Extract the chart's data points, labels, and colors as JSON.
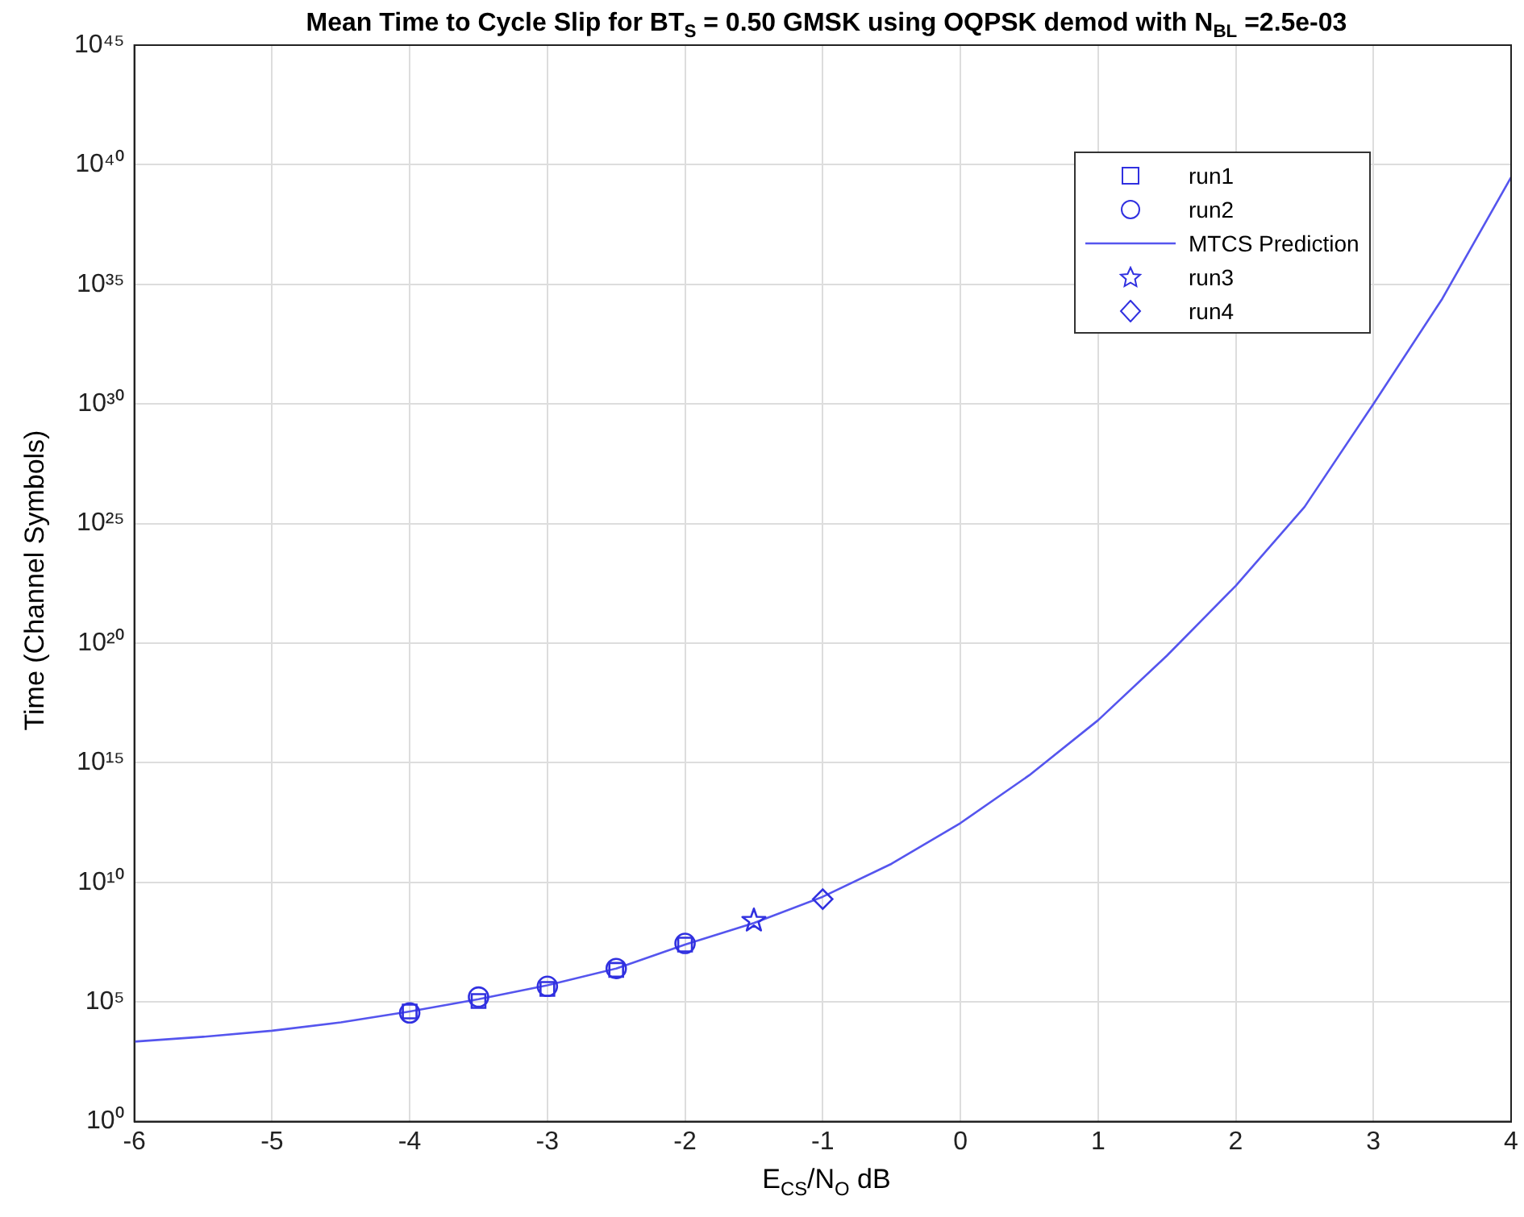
{
  "chart_data": {
    "type": "scatter",
    "title": "Mean Time to Cycle Slip for BT$_{S}$ = 0.50 GMSK using OQPSK demod with N$_{B}$$_{L}$ =2.5e-03",
    "xlabel": "E$_{CS}$/N$_{O}$ dB",
    "ylabel": "Time (Channel Symbols)",
    "xlim": [
      -6,
      4
    ],
    "xticks": [
      -6,
      -5,
      -4,
      -3,
      -2,
      -1,
      0,
      1,
      2,
      3,
      4
    ],
    "ylim": [
      1,
      1e+45
    ],
    "yticks": [
      {
        "value": 1,
        "label": "10⁰"
      },
      {
        "value": 100000.0,
        "label": "10⁵"
      },
      {
        "value": 10000000000.0,
        "label": "10¹⁰"
      },
      {
        "value": 1000000000000000.0,
        "label": "10¹⁵"
      },
      {
        "value": 1e+20,
        "label": "10²⁰"
      },
      {
        "value": 1e+25,
        "label": "10²⁵"
      },
      {
        "value": 1e+30,
        "label": "10³⁰"
      },
      {
        "value": 1e+35,
        "label": "10³⁵"
      },
      {
        "value": 1e+40,
        "label": "10⁴⁰"
      },
      {
        "value": 1e+45,
        "label": "10⁴⁵"
      }
    ],
    "log": "y",
    "grid": true,
    "legend": "top right",
    "series": [
      {
        "name": "run1",
        "marker": "square",
        "color": "#3030e0",
        "x": [
          -4,
          -3.5,
          -3,
          -2.5,
          -2
        ],
        "values": [
          40000.0,
          110000.0,
          350000.0,
          2200000.0,
          25000000.0
        ]
      },
      {
        "name": "run2",
        "marker": "circle",
        "color": "#3030e0",
        "x": [
          -4,
          -3.5,
          -3,
          -2.5,
          -2
        ],
        "values": [
          35000.0,
          160000.0,
          450000.0,
          2500000.0,
          28000000.0
        ]
      },
      {
        "name": "MTCS Prediction",
        "type": "line",
        "marker": "none",
        "line_style": "solid",
        "color": "#5555ee",
        "x": [
          -6,
          -5.5,
          -5,
          -4.5,
          -4,
          -3.5,
          -3,
          -2.5,
          -2,
          -1.5,
          -1,
          -0.5,
          0,
          0.5,
          1,
          1.5,
          2,
          2.5,
          3,
          3.5,
          4
        ],
        "values": [
          2200.0,
          3500.0,
          6300.0,
          14000.0,
          40000.0,
          130000.0,
          500000.0,
          2500000.0,
          25000000.0,
          200000000.0,
          2500000000.0,
          60000000000.0,
          3000000000000.0,
          300000000000000.0,
          6e+16,
          3e+19,
          2.5e+22,
          5e+25,
          1e+30,
          2.5e+34,
          3e+39
        ]
      },
      {
        "name": "run3",
        "marker": "star",
        "color": "#3030e0",
        "x": [
          -1.5
        ],
        "values": [
          250000000.0
        ]
      },
      {
        "name": "run4",
        "marker": "diamond",
        "color": "#3030e0",
        "x": [
          -1
        ],
        "values": [
          2000000000.0
        ]
      }
    ]
  }
}
